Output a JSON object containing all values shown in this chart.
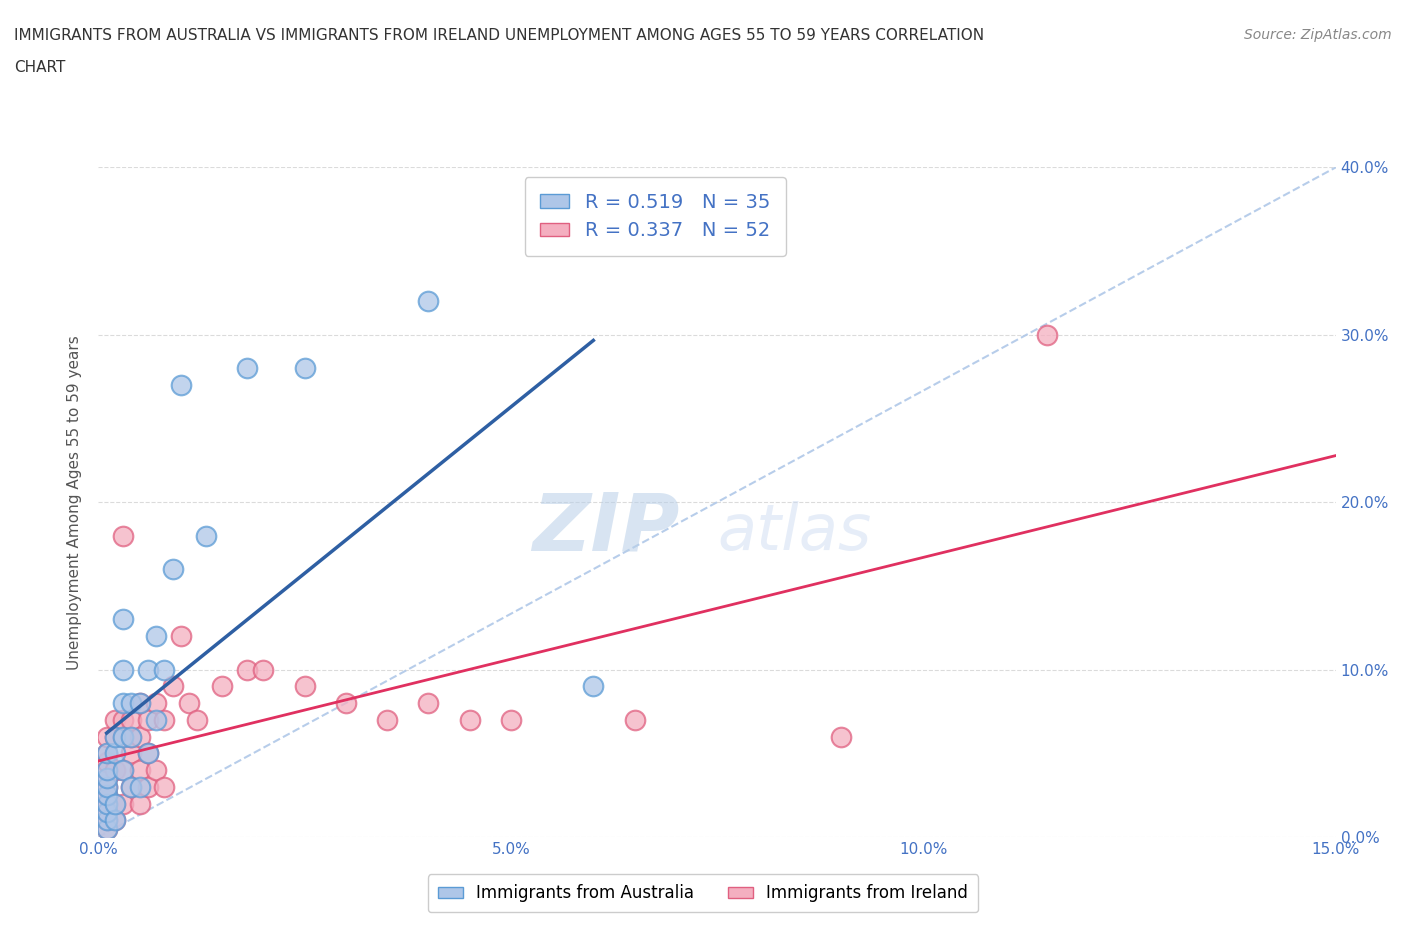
{
  "title_line1": "IMMIGRANTS FROM AUSTRALIA VS IMMIGRANTS FROM IRELAND UNEMPLOYMENT AMONG AGES 55 TO 59 YEARS CORRELATION",
  "title_line2": "CHART",
  "source": "Source: ZipAtlas.com",
  "ylabel": "Unemployment Among Ages 55 to 59 years",
  "xlim": [
    0.0,
    0.15
  ],
  "ylim": [
    0.0,
    0.4
  ],
  "xticks": [
    0.0,
    0.05,
    0.1,
    0.15
  ],
  "yticks": [
    0.0,
    0.1,
    0.2,
    0.3,
    0.4
  ],
  "xticklabels": [
    "0.0%",
    "5.0%",
    "10.0%",
    "15.0%"
  ],
  "yticklabels": [
    "0.0%",
    "10.0%",
    "20.0%",
    "30.0%",
    "40.0%"
  ],
  "australia_color": "#aec6e8",
  "ireland_color": "#f4afc0",
  "australia_edge": "#5b9bd5",
  "ireland_edge": "#e06080",
  "regression_australia_color": "#2e5fa3",
  "regression_ireland_color": "#e03060",
  "diagonal_color": "#b0c8e8",
  "R_australia": 0.519,
  "N_australia": 35,
  "R_ireland": 0.337,
  "N_ireland": 52,
  "legend_label_australia": "Immigrants from Australia",
  "legend_label_ireland": "Immigrants from Ireland",
  "watermark_zip": "ZIP",
  "watermark_atlas": "atlas",
  "tick_color": "#4472c4",
  "australia_x": [
    0.001,
    0.001,
    0.001,
    0.001,
    0.001,
    0.001,
    0.001,
    0.001,
    0.001,
    0.002,
    0.002,
    0.002,
    0.002,
    0.003,
    0.003,
    0.003,
    0.003,
    0.003,
    0.004,
    0.004,
    0.004,
    0.005,
    0.005,
    0.006,
    0.006,
    0.007,
    0.007,
    0.008,
    0.009,
    0.01,
    0.013,
    0.018,
    0.025,
    0.04,
    0.06
  ],
  "australia_y": [
    0.005,
    0.01,
    0.015,
    0.02,
    0.025,
    0.03,
    0.035,
    0.04,
    0.05,
    0.01,
    0.02,
    0.05,
    0.06,
    0.04,
    0.06,
    0.08,
    0.1,
    0.13,
    0.03,
    0.06,
    0.08,
    0.03,
    0.08,
    0.05,
    0.1,
    0.07,
    0.12,
    0.1,
    0.16,
    0.27,
    0.18,
    0.28,
    0.28,
    0.32,
    0.09
  ],
  "ireland_x": [
    0.001,
    0.001,
    0.001,
    0.001,
    0.001,
    0.001,
    0.001,
    0.001,
    0.001,
    0.001,
    0.001,
    0.002,
    0.002,
    0.002,
    0.002,
    0.002,
    0.003,
    0.003,
    0.003,
    0.003,
    0.003,
    0.004,
    0.004,
    0.004,
    0.004,
    0.005,
    0.005,
    0.005,
    0.005,
    0.006,
    0.006,
    0.006,
    0.007,
    0.007,
    0.008,
    0.008,
    0.009,
    0.01,
    0.011,
    0.012,
    0.015,
    0.018,
    0.02,
    0.025,
    0.03,
    0.035,
    0.04,
    0.045,
    0.05,
    0.065,
    0.09,
    0.115
  ],
  "ireland_y": [
    0.005,
    0.01,
    0.015,
    0.02,
    0.025,
    0.03,
    0.035,
    0.04,
    0.045,
    0.05,
    0.06,
    0.01,
    0.02,
    0.04,
    0.06,
    0.07,
    0.02,
    0.04,
    0.06,
    0.07,
    0.18,
    0.03,
    0.05,
    0.06,
    0.07,
    0.02,
    0.04,
    0.06,
    0.08,
    0.03,
    0.05,
    0.07,
    0.04,
    0.08,
    0.03,
    0.07,
    0.09,
    0.12,
    0.08,
    0.07,
    0.09,
    0.1,
    0.1,
    0.09,
    0.08,
    0.07,
    0.08,
    0.07,
    0.07,
    0.07,
    0.06,
    0.3
  ]
}
